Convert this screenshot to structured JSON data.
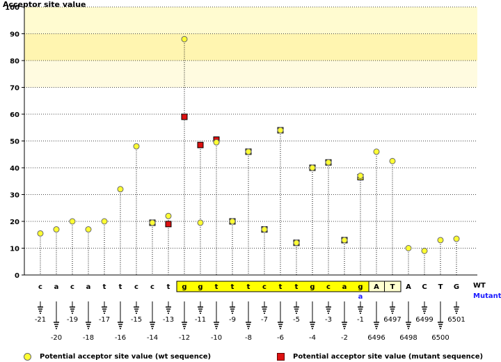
{
  "chart_data": {
    "type": "scatter",
    "ylabel": "Acceptor site value",
    "ylim": [
      0,
      100
    ],
    "yticks": [
      0,
      10,
      20,
      30,
      40,
      50,
      60,
      70,
      80,
      90,
      100
    ],
    "highlight_bands": [
      {
        "from": 90,
        "to": 100,
        "color": "#fffbd0"
      },
      {
        "from": 80,
        "to": 90,
        "color": "#fff5b0"
      },
      {
        "from": 70,
        "to": 80,
        "color": "#fffbe0"
      }
    ],
    "row_labels": {
      "wt": "WT",
      "mutant": "Mutant"
    },
    "positions": [
      {
        "pos": "-21",
        "wt": "c",
        "mutant": "",
        "value": 15.5,
        "mut_value": null
      },
      {
        "pos": "-20",
        "wt": "a",
        "mutant": "",
        "value": 17,
        "mut_value": null
      },
      {
        "pos": "-19",
        "wt": "c",
        "mutant": "",
        "value": 20,
        "mut_value": null
      },
      {
        "pos": "-18",
        "wt": "a",
        "mutant": "",
        "value": 17,
        "mut_value": null
      },
      {
        "pos": "-17",
        "wt": "t",
        "mutant": "",
        "value": 20,
        "mut_value": null
      },
      {
        "pos": "-16",
        "wt": "t",
        "mutant": "",
        "value": 32,
        "mut_value": null
      },
      {
        "pos": "-15",
        "wt": "c",
        "mutant": "",
        "value": 48,
        "mut_value": null
      },
      {
        "pos": "-14",
        "wt": "c",
        "mutant": "",
        "value": 19.5,
        "mut_value": 19.5
      },
      {
        "pos": "-13",
        "wt": "t",
        "mutant": "",
        "value": 22,
        "mut_value": 19
      },
      {
        "pos": "-12",
        "wt": "g",
        "mutant": "",
        "value": 88,
        "mut_value": 59
      },
      {
        "pos": "-11",
        "wt": "g",
        "mutant": "",
        "value": 19.5,
        "mut_value": 48.5
      },
      {
        "pos": "-10",
        "wt": "t",
        "mutant": "",
        "value": 49.5,
        "mut_value": 50.5
      },
      {
        "pos": "-9",
        "wt": "t",
        "mutant": "",
        "value": 20,
        "mut_value": 20
      },
      {
        "pos": "-8",
        "wt": "t",
        "mutant": "",
        "value": 46,
        "mut_value": 46
      },
      {
        "pos": "-7",
        "wt": "c",
        "mutant": "",
        "value": 17,
        "mut_value": 17
      },
      {
        "pos": "-6",
        "wt": "t",
        "mutant": "",
        "value": 54,
        "mut_value": 54
      },
      {
        "pos": "-5",
        "wt": "t",
        "mutant": "",
        "value": 12,
        "mut_value": 12
      },
      {
        "pos": "-4",
        "wt": "g",
        "mutant": "",
        "value": 40,
        "mut_value": 40
      },
      {
        "pos": "-3",
        "wt": "c",
        "mutant": "",
        "value": 42,
        "mut_value": 42
      },
      {
        "pos": "-2",
        "wt": "a",
        "mutant": "",
        "value": 13,
        "mut_value": 13
      },
      {
        "pos": "-1",
        "wt": "g",
        "mutant": "a",
        "value": 37,
        "mut_value": 36.5
      },
      {
        "pos": "6496",
        "wt": "A",
        "mutant": "",
        "value": 46,
        "mut_value": null
      },
      {
        "pos": "6497",
        "wt": "T",
        "mutant": "",
        "value": 42.5,
        "mut_value": null
      },
      {
        "pos": "6498",
        "wt": "A",
        "mutant": "",
        "value": 10,
        "mut_value": null
      },
      {
        "pos": "6499",
        "wt": "C",
        "mutant": "",
        "value": 9,
        "mut_value": null
      },
      {
        "pos": "6500",
        "wt": "T",
        "mutant": "",
        "value": 13,
        "mut_value": null
      },
      {
        "pos": "6501",
        "wt": "G",
        "mutant": "",
        "value": 13.5,
        "mut_value": null
      }
    ],
    "intron_box": {
      "first": 9,
      "last": 20,
      "color": "#ffff00"
    },
    "exon_box": {
      "first": 21,
      "last": 22,
      "color": "#ffffd0"
    },
    "legend": [
      {
        "label": "Potential acceptor site value (wt sequence)",
        "marker": "circle",
        "color": "#ffff33"
      },
      {
        "label": "Potential acceptor site value (mutant sequence)",
        "marker": "square",
        "color": "#dd1111"
      }
    ]
  }
}
